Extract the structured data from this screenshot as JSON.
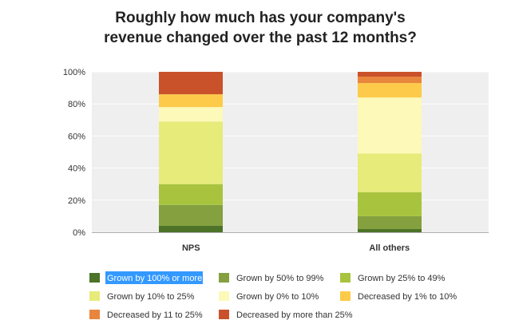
{
  "chart_data": {
    "type": "bar",
    "stacked": true,
    "title_lines": [
      "Roughly how much has your company's",
      "revenue changed over the past 12 months?"
    ],
    "categories": [
      "NPS",
      "All others"
    ],
    "ylim": [
      0,
      100
    ],
    "yticks": [
      "0%",
      "20%",
      "40%",
      "60%",
      "80%",
      "100%"
    ],
    "grid": true,
    "legend_position": "bottom",
    "series": [
      {
        "name": "Grown by 100% or more",
        "color": "#4c7327",
        "values": [
          4,
          2
        ],
        "highlighted": true
      },
      {
        "name": "Grown by 50% to 99%",
        "color": "#84a03f",
        "values": [
          13,
          8
        ]
      },
      {
        "name": "Grown by 25% to 49%",
        "color": "#a8c43e",
        "values": [
          13,
          15
        ]
      },
      {
        "name": "Grown by 10% to 25%",
        "color": "#e7eb7a",
        "values": [
          39,
          24
        ]
      },
      {
        "name": "Grown by 0% to 10%",
        "color": "#fdf9b8",
        "values": [
          9,
          35
        ]
      },
      {
        "name": "Decreased by 1% to 10%",
        "color": "#fdcb49",
        "values": [
          8,
          9
        ]
      },
      {
        "name": "Decreased by 11 to 25%",
        "color": "#e8863d",
        "values": [
          0,
          4
        ]
      },
      {
        "name": "Decreased by more than 25%",
        "color": "#c9522a",
        "values": [
          14,
          3
        ]
      }
    ]
  }
}
